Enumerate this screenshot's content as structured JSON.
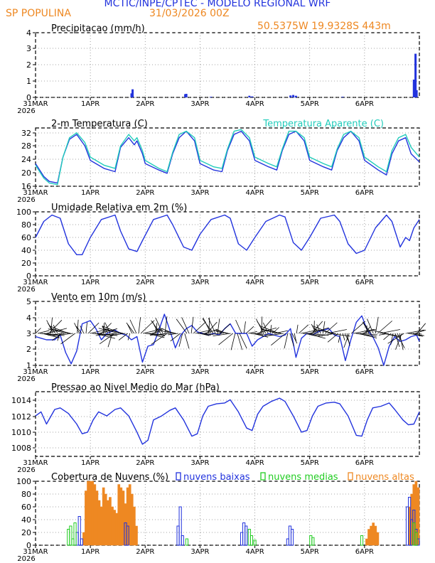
{
  "header": {
    "title": "MCTIC/INPE/CPTEC - MODELO REGIONAL WRF",
    "location": "SP POPULINA",
    "run": "31/03/2026 00Z",
    "coords": "50.5375W  19.9328S  443m"
  },
  "colors": {
    "blue": "#2233dd",
    "orange": "#ee8822",
    "cyan": "#22ccbb",
    "green": "#22cc22",
    "black": "#000000"
  },
  "x_axis": {
    "ticks": [
      "31MAR",
      "1APR",
      "2APR",
      "3APR",
      "4APR",
      "5APR",
      "6APR"
    ],
    "year": "2026"
  },
  "chart_data": [
    {
      "id": "precip",
      "type": "bar",
      "title": "Precipitacao (mm/h)",
      "ylim": [
        0,
        4
      ],
      "yticks": [
        "0",
        "1",
        "2",
        "3",
        "4"
      ],
      "x": [
        1.75,
        1.77,
        2.73,
        2.75,
        3.2,
        3.9,
        3.95,
        4.65,
        4.7,
        4.75,
        5.6,
        6.9,
        6.93,
        6.95
      ],
      "values": [
        0.25,
        0.5,
        0.2,
        0.22,
        0.04,
        0.1,
        0.06,
        0.12,
        0.15,
        0.1,
        0.04,
        1.1,
        2.7,
        0.45
      ]
    },
    {
      "id": "temp",
      "type": "line",
      "title": "2-m Temperatura (C)",
      "legend": "Temperatura Aparente (C)",
      "ylim": [
        16,
        34
      ],
      "yticks": [
        "16",
        "20",
        "24",
        "28",
        "32"
      ],
      "series": [
        {
          "name": "Temperatura",
          "color": "#2233dd",
          "x": [
            0,
            0.15,
            0.25,
            0.4,
            0.5,
            0.62,
            0.75,
            0.9,
            1.0,
            1.25,
            1.45,
            1.55,
            1.7,
            1.8,
            1.85,
            1.95,
            2.0,
            2.25,
            2.4,
            2.5,
            2.62,
            2.75,
            2.9,
            3.0,
            3.25,
            3.4,
            3.5,
            3.62,
            3.75,
            3.9,
            4.0,
            4.25,
            4.4,
            4.5,
            4.62,
            4.75,
            4.9,
            5.0,
            5.25,
            5.4,
            5.5,
            5.62,
            5.75,
            5.9,
            6.0,
            6.25,
            6.4,
            6.5,
            6.62,
            6.75,
            6.85,
            7.0
          ],
          "y": [
            23,
            19,
            17.5,
            17,
            25,
            30.5,
            32,
            28.5,
            24,
            21.5,
            20.5,
            28,
            31,
            28.8,
            30,
            26,
            23,
            21,
            20,
            26,
            31,
            33,
            30,
            23,
            21,
            20.5,
            27,
            32,
            33,
            30,
            24,
            22,
            21,
            27,
            32,
            33,
            30,
            24,
            22,
            21,
            27,
            31,
            33,
            30,
            24,
            21,
            19.5,
            26,
            30,
            31,
            26,
            23.5
          ]
        },
        {
          "name": "Temperatura Aparente",
          "color": "#22ccbb",
          "x": [
            0,
            0.15,
            0.25,
            0.4,
            0.5,
            0.62,
            0.75,
            0.9,
            1.0,
            1.25,
            1.45,
            1.55,
            1.7,
            1.8,
            1.85,
            1.95,
            2.0,
            2.25,
            2.4,
            2.5,
            2.62,
            2.75,
            2.9,
            3.0,
            3.25,
            3.4,
            3.5,
            3.62,
            3.75,
            3.9,
            4.0,
            4.25,
            4.4,
            4.5,
            4.62,
            4.75,
            4.9,
            5.0,
            5.25,
            5.4,
            5.5,
            5.62,
            5.75,
            5.9,
            6.0,
            6.25,
            6.4,
            6.5,
            6.62,
            6.75,
            6.85,
            7.0
          ],
          "y": [
            22.5,
            18.5,
            17,
            16.5,
            25,
            31,
            32.5,
            29.5,
            25,
            22.5,
            21.5,
            28.5,
            32,
            30,
            31,
            27,
            24,
            21.5,
            20.5,
            26.5,
            32,
            33,
            31,
            24,
            22,
            21.5,
            27.5,
            33,
            33.5,
            31,
            25,
            23,
            22,
            27.5,
            33,
            33,
            31,
            25,
            23,
            22,
            27.5,
            32,
            33,
            31,
            25,
            22,
            20.5,
            27,
            31,
            32,
            28,
            25
          ]
        }
      ]
    },
    {
      "id": "rh",
      "type": "line",
      "title": "Umidade Relativa em 2m (%)",
      "ylim": [
        0,
        100
      ],
      "yticks": [
        "0",
        "20",
        "40",
        "60",
        "80",
        "100"
      ],
      "series": [
        {
          "name": "Umidade",
          "color": "#2233dd",
          "x": [
            0,
            0.15,
            0.3,
            0.45,
            0.6,
            0.75,
            0.85,
            1.0,
            1.2,
            1.45,
            1.55,
            1.7,
            1.85,
            1.95,
            2.15,
            2.4,
            2.5,
            2.7,
            2.85,
            3.0,
            3.2,
            3.45,
            3.55,
            3.7,
            3.85,
            4.0,
            4.2,
            4.45,
            4.55,
            4.7,
            4.85,
            5.0,
            5.2,
            5.45,
            5.55,
            5.7,
            5.85,
            6.0,
            6.2,
            6.4,
            6.5,
            6.65,
            6.75,
            6.82,
            6.9,
            7.0
          ],
          "y": [
            60,
            85,
            95,
            90,
            50,
            33,
            33,
            60,
            88,
            95,
            70,
            42,
            38,
            55,
            88,
            95,
            80,
            45,
            40,
            65,
            88,
            95,
            90,
            50,
            40,
            60,
            85,
            95,
            92,
            52,
            40,
            60,
            90,
            95,
            85,
            50,
            35,
            40,
            75,
            95,
            85,
            45,
            60,
            55,
            75,
            88
          ]
        }
      ]
    },
    {
      "id": "wind",
      "type": "line",
      "title": "Vento em 10m (m/s)",
      "ylim": [
        1,
        5
      ],
      "yticks": [
        "1",
        "2",
        "3",
        "4",
        "5"
      ],
      "series": [
        {
          "name": "Vento",
          "color": "#2233dd",
          "x": [
            0,
            0.1,
            0.2,
            0.35,
            0.45,
            0.55,
            0.65,
            0.75,
            0.85,
            1.0,
            1.1,
            1.2,
            1.3,
            1.45,
            1.55,
            1.65,
            1.75,
            1.85,
            1.95,
            2.05,
            2.15,
            2.25,
            2.35,
            2.45,
            2.55,
            2.65,
            2.75,
            2.85,
            2.95,
            3.05,
            3.15,
            3.25,
            3.35,
            3.45,
            3.55,
            3.65,
            3.75,
            3.85,
            3.95,
            4.05,
            4.15,
            4.25,
            4.35,
            4.45,
            4.55,
            4.65,
            4.75,
            4.85,
            4.95,
            5.05,
            5.15,
            5.25,
            5.35,
            5.45,
            5.55,
            5.65,
            5.75,
            5.85,
            5.95,
            6.05,
            6.15,
            6.25,
            6.35,
            6.45,
            6.55,
            6.65,
            6.75,
            6.85,
            6.95,
            7.0
          ],
          "y": [
            2.8,
            2.7,
            2.6,
            2.6,
            2.9,
            1.8,
            1.1,
            1.9,
            3.6,
            3.8,
            3.3,
            2.6,
            3.0,
            3.2,
            3.0,
            2.9,
            2.6,
            2.8,
            1.2,
            2.2,
            2.3,
            3.2,
            4.2,
            3.2,
            2.1,
            2.9,
            3.3,
            3.5,
            3.1,
            3.0,
            2.9,
            3.0,
            2.9,
            3.3,
            3.6,
            3.0,
            3.0,
            3.0,
            2.2,
            2.6,
            2.8,
            3.0,
            2.9,
            2.8,
            2.9,
            3.3,
            1.5,
            2.7,
            3.0,
            2.9,
            3.1,
            3.2,
            3.3,
            2.9,
            2.8,
            1.3,
            2.6,
            3.7,
            4.1,
            3.2,
            2.8,
            2.1,
            1.0,
            2.2,
            2.8,
            2.5,
            2.6,
            2.8,
            2.9,
            2.5
          ]
        }
      ]
    },
    {
      "id": "pres",
      "type": "line",
      "title": "Pressao ao Nivel Medio do Mar (hPa)",
      "ylim": [
        1007,
        1015
      ],
      "yticks": [
        "1008",
        "1010",
        "1012",
        "1014"
      ],
      "series": [
        {
          "name": "Pressao",
          "color": "#2233dd",
          "x": [
            0,
            0.1,
            0.2,
            0.35,
            0.45,
            0.6,
            0.75,
            0.85,
            0.95,
            1.05,
            1.15,
            1.3,
            1.45,
            1.55,
            1.7,
            1.85,
            1.95,
            2.05,
            2.15,
            2.3,
            2.45,
            2.55,
            2.7,
            2.85,
            2.95,
            3.05,
            3.15,
            3.3,
            3.45,
            3.55,
            3.7,
            3.85,
            3.95,
            4.05,
            4.15,
            4.3,
            4.45,
            4.55,
            4.7,
            4.85,
            4.95,
            5.05,
            5.15,
            5.3,
            5.45,
            5.55,
            5.7,
            5.85,
            5.95,
            6.05,
            6.15,
            6.3,
            6.45,
            6.55,
            6.7,
            6.8,
            6.9,
            7.0
          ],
          "y": [
            1012,
            1012.5,
            1011,
            1012.8,
            1013,
            1012.3,
            1011,
            1009.8,
            1010,
            1011.5,
            1012.5,
            1012,
            1012.8,
            1013,
            1012,
            1010,
            1008.5,
            1009,
            1011.5,
            1012,
            1012.7,
            1013,
            1011.5,
            1009.5,
            1009.8,
            1012,
            1013.2,
            1013.5,
            1013.6,
            1014,
            1012.5,
            1010.5,
            1010.2,
            1012.2,
            1013.2,
            1013.8,
            1014.2,
            1013.8,
            1012,
            1010,
            1010.2,
            1012,
            1013.2,
            1013.6,
            1013.7,
            1013.5,
            1012,
            1009.6,
            1009.5,
            1011.5,
            1013,
            1013.2,
            1013.6,
            1012.8,
            1011.5,
            1010.9,
            1011,
            1012.5
          ]
        }
      ]
    },
    {
      "id": "clouds",
      "type": "bar",
      "title": "Cobertura de Nuvens (%)",
      "legend": [
        "nuvens baixas",
        "nuvens medias",
        "nuvens altas"
      ],
      "ylim": [
        0,
        100
      ],
      "yticks": [
        "0",
        "20",
        "40",
        "60",
        "80",
        "100"
      ],
      "series": [
        {
          "name": "nuvens altas",
          "color": "#ee8822",
          "x": [
            0.88,
            0.92,
            0.96,
            1.0,
            1.04,
            1.08,
            1.12,
            1.16,
            1.2,
            1.24,
            1.28,
            1.32,
            1.36,
            1.4,
            1.44,
            1.48,
            1.52,
            1.56,
            1.6,
            1.64,
            1.68,
            1.72,
            1.76,
            1.8,
            1.84,
            6.04,
            6.08,
            6.12,
            6.16,
            6.2,
            6.24,
            6.82,
            6.86,
            6.9,
            6.94,
            6.98
          ],
          "values": [
            20,
            85,
            100,
            100,
            100,
            95,
            85,
            70,
            60,
            90,
            80,
            70,
            75,
            60,
            55,
            50,
            95,
            90,
            85,
            65,
            90,
            95,
            80,
            60,
            30,
            10,
            25,
            30,
            35,
            30,
            20,
            60,
            80,
            95,
            100,
            90
          ]
        },
        {
          "name": "nuvens baixas",
          "color": "#2233dd",
          "x": [
            0.76,
            0.8,
            0.84,
            1.64,
            1.68,
            2.6,
            2.64,
            2.68,
            3.76,
            3.8,
            3.84,
            4.6,
            4.64,
            4.68,
            6.78,
            6.82,
            6.86,
            6.9,
            6.94,
            6.98
          ],
          "values": [
            20,
            45,
            10,
            35,
            30,
            30,
            60,
            15,
            20,
            35,
            30,
            10,
            30,
            25,
            60,
            75,
            40,
            55,
            25,
            10
          ]
        },
        {
          "name": "nuvens medias",
          "color": "#22cc22",
          "x": [
            0.6,
            0.64,
            0.68,
            0.72,
            2.76,
            3.9,
            3.94,
            4.0,
            5.02,
            5.06,
            5.95,
            6.9,
            6.94
          ],
          "values": [
            25,
            30,
            10,
            35,
            10,
            25,
            15,
            8,
            15,
            12,
            15,
            35,
            20
          ]
        }
      ]
    }
  ]
}
